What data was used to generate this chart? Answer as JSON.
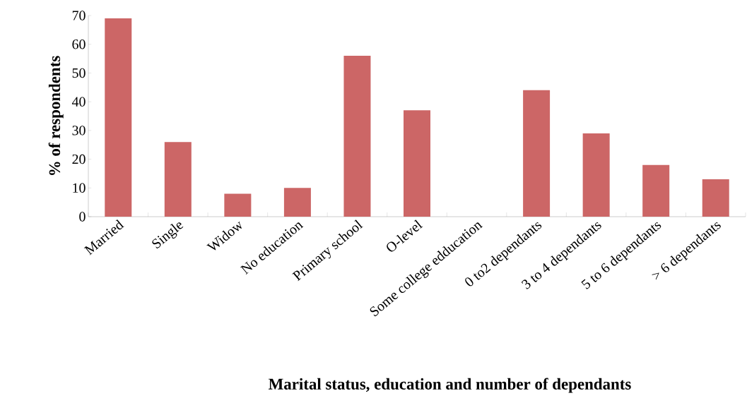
{
  "chart_data": {
    "type": "bar",
    "xlabel": "Marital status, education and number of dependants",
    "ylabel": "% of respondents",
    "categories": [
      "Married",
      "Single",
      "Widow",
      "No education",
      "Primary school",
      "O-level",
      "Some college edducation",
      "0 to2 dependants",
      "3 to 4 dependants",
      "5 to 6 dependants",
      "> 6 dependants"
    ],
    "values": [
      69,
      26,
      8,
      10,
      56,
      37,
      0,
      44,
      29,
      18,
      13
    ],
    "color": "#cc6666",
    "ylim": [
      0,
      70
    ],
    "yticks": [
      0,
      10,
      20,
      30,
      40,
      50,
      60,
      70
    ],
    "grid": false
  }
}
